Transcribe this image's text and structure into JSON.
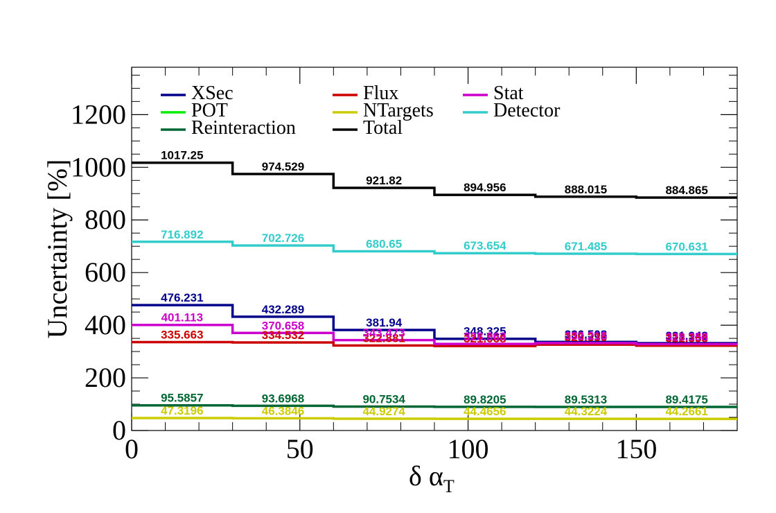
{
  "chart_data": {
    "type": "line",
    "step": true,
    "xlabel_main": "δ α",
    "xlabel_sub": "T",
    "ylabel": "Uncertainty [%]",
    "xlim": [
      0,
      180
    ],
    "ylim": [
      0,
      1380
    ],
    "x_ticks": [
      0,
      50,
      100,
      150
    ],
    "y_ticks": [
      0,
      200,
      400,
      600,
      800,
      1000,
      1200
    ],
    "bin_edges": [
      0,
      30,
      60,
      90,
      120,
      150,
      180
    ],
    "legend_position": "top",
    "grid": false,
    "series": [
      {
        "name": "XSec",
        "color": "#00008b",
        "values": [
          476.231,
          432.289,
          381.94,
          348.325,
          336.508,
          331.948
        ],
        "labels": [
          "476.231",
          "432.289",
          "381.94",
          "348.325",
          "336.508",
          "331.948"
        ]
      },
      {
        "name": "Flux",
        "color": "#cc0000",
        "values": [
          335.663,
          334.532,
          322.881,
          321.068,
          326.336,
          322.358
        ],
        "labels": [
          "335.663",
          "334.532",
          "322.881",
          "321.068",
          "326.336",
          "322.358"
        ]
      },
      {
        "name": "Stat",
        "color": "#cc00cc",
        "values": [
          401.113,
          370.658,
          343.473,
          328.963,
          332.218,
          328.358
        ],
        "labels": [
          "401.113",
          "370.658",
          "343.473",
          "328.963",
          "332.218",
          "328.358"
        ]
      },
      {
        "name": "POT",
        "color": "#00ee00",
        "values": [],
        "labels": []
      },
      {
        "name": "NTargets",
        "color": "#cccc00",
        "values": [
          47.3196,
          46.3846,
          44.9274,
          44.4656,
          44.3224,
          44.2661
        ],
        "labels": [
          "47.3196",
          "46.3846",
          "44.9274",
          "44.4656",
          "44.3224",
          "44.2661"
        ]
      },
      {
        "name": "Detector",
        "color": "#33cccc",
        "values": [
          716.892,
          702.726,
          680.65,
          673.654,
          671.485,
          670.631
        ],
        "labels": [
          "716.892",
          "702.726",
          "680.65",
          "673.654",
          "671.485",
          "670.631"
        ]
      },
      {
        "name": "Reinteraction",
        "color": "#006633",
        "values": [
          95.5857,
          93.6968,
          90.7534,
          89.8205,
          89.5313,
          89.4175
        ],
        "labels": [
          "95.5857",
          "93.6968",
          "90.7534",
          "89.8205",
          "89.5313",
          "89.4175"
        ]
      },
      {
        "name": "Total",
        "color": "#000000",
        "values": [
          1017.25,
          974.529,
          921.82,
          894.956,
          888.015,
          884.865
        ],
        "labels": [
          "1017.25",
          "974.529",
          "921.82",
          "894.956",
          "888.015",
          "884.865"
        ]
      }
    ]
  }
}
